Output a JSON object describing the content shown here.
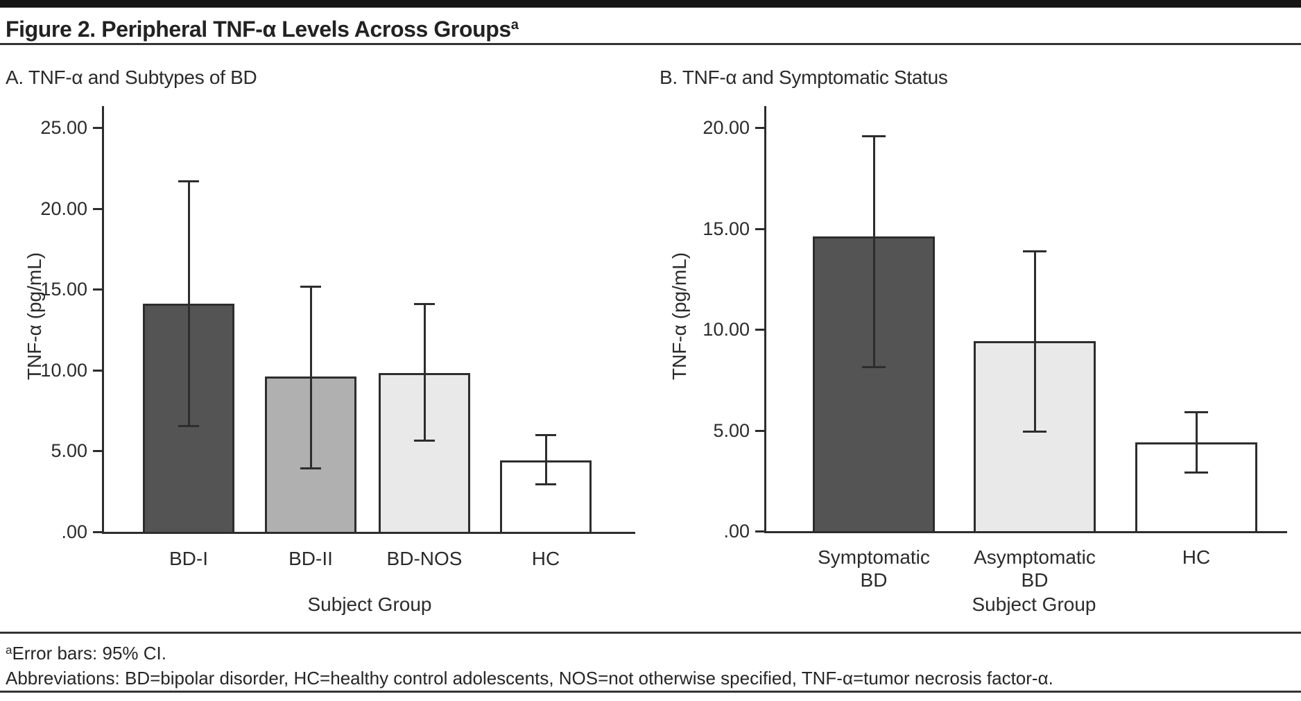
{
  "figure": {
    "title": "Figure 2. Peripheral TNF-α Levels Across Groups",
    "title_superscript": "a",
    "footnote_superscript": "a",
    "footnote_error_bars": "Error bars: 95% CI.",
    "footnote_abbreviations": "Abbreviations: BD=bipolar disorder, HC=healthy control adolescents, NOS=not otherwise specified, TNF-α=tumor necrosis factor-α."
  },
  "colors": {
    "dark_gray_bar": "#545454",
    "medium_gray_bar": "#b0b0b0",
    "light_gray_bar": "#e9e9e9",
    "white_bar": "#ffffff",
    "line": "#2d2d2d",
    "text": "#262626"
  },
  "chart_data": [
    {
      "type": "bar",
      "panel_label": "A. TNF-α and Subtypes of BD",
      "categories": [
        "BD-I",
        "BD-II",
        "BD-NOS",
        "HC"
      ],
      "category_lines": [
        [
          "BD-I"
        ],
        [
          "BD-II"
        ],
        [
          "BD-NOS"
        ],
        [
          "HC"
        ]
      ],
      "values": [
        14.1,
        9.6,
        9.8,
        4.4
      ],
      "ci_low": [
        6.5,
        3.9,
        5.6,
        2.9
      ],
      "ci_high": [
        21.7,
        15.2,
        14.1,
        6.0
      ],
      "error_bars": "95% CI",
      "bar_colors": [
        "#545454",
        "#b0b0b0",
        "#e9e9e9",
        "#ffffff"
      ],
      "xlabel": "Subject Group",
      "ylabel": "TNF-α (pg/mL)",
      "ylim": [
        0,
        26.5
      ],
      "yticks": [
        0,
        5,
        10,
        15,
        20,
        25
      ],
      "ytick_labels": [
        ".00",
        "5.00",
        "10.00",
        "15.00",
        "20.00",
        "25.00"
      ],
      "grid": false,
      "legend": false
    },
    {
      "type": "bar",
      "panel_label": "B. TNF-α and Symptomatic Status",
      "categories": [
        "Symptomatic BD",
        "Asymptomatic BD",
        "HC"
      ],
      "category_lines": [
        [
          "Symptomatic",
          "BD"
        ],
        [
          "Asymptomatic",
          "BD"
        ],
        [
          "HC"
        ]
      ],
      "values": [
        14.6,
        9.4,
        4.4
      ],
      "ci_low": [
        8.1,
        4.9,
        2.9
      ],
      "ci_high": [
        19.6,
        13.9,
        5.9
      ],
      "error_bars": "95% CI",
      "bar_colors": [
        "#545454",
        "#e9e9e9",
        "#ffffff"
      ],
      "xlabel": "Subject Group",
      "ylabel": "TNF-α (pg/mL)",
      "ylim": [
        0,
        21
      ],
      "yticks": [
        0,
        5,
        10,
        15,
        20
      ],
      "ytick_labels": [
        ".00",
        "5.00",
        "10.00",
        "15.00",
        "20.00"
      ],
      "grid": false,
      "legend": false
    }
  ]
}
